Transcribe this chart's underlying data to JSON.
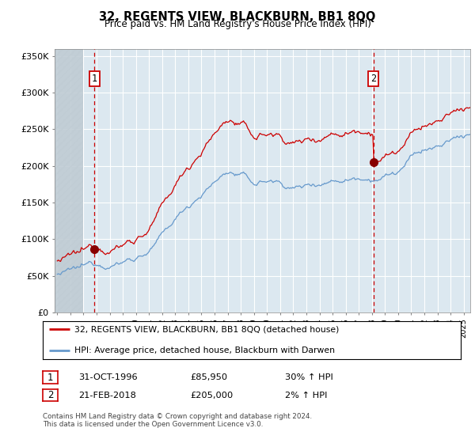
{
  "title": "32, REGENTS VIEW, BLACKBURN, BB1 8QQ",
  "subtitle": "Price paid vs. HM Land Registry's House Price Index (HPI)",
  "background_color": "#ffffff",
  "plot_bg_color": "#dce8f0",
  "ylim": [
    0,
    360000
  ],
  "yticks": [
    0,
    50000,
    100000,
    150000,
    200000,
    250000,
    300000,
    350000
  ],
  "ytick_labels": [
    "£0",
    "£50K",
    "£100K",
    "£150K",
    "£200K",
    "£250K",
    "£300K",
    "£350K"
  ],
  "xlim_start": 1993.8,
  "xlim_end": 2025.5,
  "sale1_date": 1996.833,
  "sale1_price": 85950,
  "sale2_date": 2018.125,
  "sale2_price": 205000,
  "red_line_color": "#cc0000",
  "blue_line_color": "#6699cc",
  "vline_color": "#cc0000",
  "legend_line1": "32, REGENTS VIEW, BLACKBURN, BB1 8QQ (detached house)",
  "legend_line2": "HPI: Average price, detached house, Blackburn with Darwen",
  "table_row1_num": "1",
  "table_row1_date": "31-OCT-1996",
  "table_row1_price": "£85,950",
  "table_row1_hpi": "30% ↑ HPI",
  "table_row2_num": "2",
  "table_row2_date": "21-FEB-2018",
  "table_row2_price": "£205,000",
  "table_row2_hpi": "2% ↑ HPI",
  "footer": "Contains HM Land Registry data © Crown copyright and database right 2024.\nThis data is licensed under the Open Government Licence v3.0.",
  "hatch_x_start": 1993.8,
  "hatch_x_end": 1996.0
}
